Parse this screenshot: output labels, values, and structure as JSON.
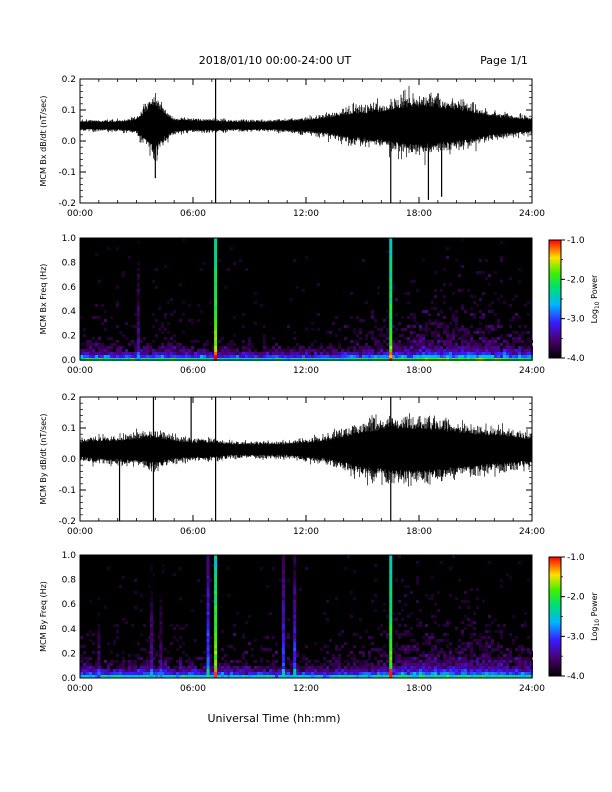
{
  "header": {
    "title": "2018/01/10  00:00-24:00 UT",
    "page": "Page 1/1"
  },
  "xlabel": "Universal Time (hh:mm)",
  "colorbar": {
    "label": "Log",
    "label_subscript": "10",
    "label_suffix": " Power",
    "range": [
      -4.0,
      -1.0
    ],
    "ticks": [
      "-1.0",
      "-2.0",
      "-3.0",
      "-4.0"
    ],
    "tick_values": [
      -1.0,
      -2.0,
      -3.0,
      -4.0
    ]
  },
  "x_ticks": [
    "00:00",
    "06:00",
    "12:00",
    "18:00",
    "24:00"
  ],
  "x_tick_values": [
    0,
    6,
    12,
    18,
    24
  ],
  "chart_data": [
    {
      "type": "line",
      "ylabel": "MCM Bx dB/dt (nT/sec)",
      "xlim": [
        0,
        24
      ],
      "ylim": [
        -0.2,
        0.2
      ],
      "y_ticks": [
        "0.2",
        "0.1",
        "0.0",
        "-0.1",
        "-0.2"
      ],
      "y_tick_values": [
        0.2,
        0.1,
        0.0,
        -0.1,
        -0.2
      ],
      "baseline": 0.05,
      "envelope_hours": [
        0,
        1,
        2,
        3,
        3.5,
        4,
        4.5,
        5,
        6,
        7,
        8,
        9,
        10,
        11,
        12,
        13,
        14,
        15,
        16,
        17,
        18,
        19,
        20,
        21,
        22,
        23,
        24
      ],
      "envelope_amplitude": [
        0.02,
        0.02,
        0.02,
        0.03,
        0.08,
        0.12,
        0.06,
        0.03,
        0.025,
        0.025,
        0.02,
        0.02,
        0.02,
        0.025,
        0.03,
        0.04,
        0.06,
        0.07,
        0.08,
        0.1,
        0.11,
        0.1,
        0.09,
        0.07,
        0.05,
        0.04,
        0.03
      ],
      "spikes": [
        {
          "t": 7.2,
          "y": 0.2
        },
        {
          "t": 7.2,
          "y": -0.2
        },
        {
          "t": 16.5,
          "y": -0.2
        },
        {
          "t": 18.5,
          "y": -0.19
        },
        {
          "t": 19.2,
          "y": -0.18
        },
        {
          "t": 4.0,
          "y": -0.12
        }
      ]
    },
    {
      "type": "heatmap",
      "ylabel": "MCM Bx Freq (Hz)",
      "xlim": [
        0,
        24
      ],
      "ylim": [
        0.0,
        1.0
      ],
      "y_ticks": [
        "1.0",
        "0.8",
        "0.6",
        "0.4",
        "0.2",
        "0.0"
      ],
      "y_tick_values": [
        1.0,
        0.8,
        0.6,
        0.4,
        0.2,
        0.0
      ],
      "vertical_stripes": [
        {
          "t": 7.2,
          "power": -1.6
        },
        {
          "t": 16.5,
          "power": -1.7
        },
        {
          "t": 3.1,
          "power": -3.3
        }
      ],
      "activity_hours": [
        0,
        2,
        4,
        6,
        8,
        10,
        12,
        14,
        16,
        18,
        20,
        22,
        24
      ],
      "activity_level": [
        0.3,
        0.25,
        0.3,
        0.25,
        0.2,
        0.2,
        0.2,
        0.25,
        0.35,
        0.45,
        0.5,
        0.45,
        0.35
      ]
    },
    {
      "type": "line",
      "ylabel": "MCM By dB/dt (nT/sec)",
      "xlim": [
        0,
        24
      ],
      "ylim": [
        -0.2,
        0.2
      ],
      "y_ticks": [
        "0.2",
        "0.1",
        "0.0",
        "-0.1",
        "-0.2"
      ],
      "y_tick_values": [
        0.2,
        0.1,
        0.0,
        -0.1,
        -0.2
      ],
      "baseline": 0.03,
      "envelope_hours": [
        0,
        1,
        2,
        3,
        4,
        5,
        6,
        7,
        8,
        9,
        10,
        11,
        12,
        13,
        14,
        15,
        16,
        17,
        18,
        19,
        20,
        21,
        22,
        23,
        24
      ],
      "envelope_amplitude": [
        0.04,
        0.05,
        0.05,
        0.06,
        0.07,
        0.05,
        0.04,
        0.04,
        0.03,
        0.03,
        0.03,
        0.03,
        0.04,
        0.05,
        0.07,
        0.1,
        0.11,
        0.12,
        0.12,
        0.11,
        0.1,
        0.09,
        0.08,
        0.07,
        0.06
      ],
      "spikes": [
        {
          "t": 7.2,
          "y": 0.2
        },
        {
          "t": 7.2,
          "y": -0.2
        },
        {
          "t": 2.1,
          "y": -0.2
        },
        {
          "t": 3.9,
          "y": -0.2
        },
        {
          "t": 3.9,
          "y": 0.2
        },
        {
          "t": 5.9,
          "y": 0.2
        },
        {
          "t": 16.5,
          "y": -0.2
        },
        {
          "t": 16.5,
          "y": 0.2
        }
      ]
    },
    {
      "type": "heatmap",
      "ylabel": "MCM By Freq (Hz)",
      "xlim": [
        0,
        24
      ],
      "ylim": [
        0.0,
        1.0
      ],
      "y_ticks": [
        "1.0",
        "0.8",
        "0.6",
        "0.4",
        "0.2",
        "0.0"
      ],
      "y_tick_values": [
        1.0,
        0.8,
        0.6,
        0.4,
        0.2,
        0.0
      ],
      "vertical_stripes": [
        {
          "t": 7.2,
          "power": -1.6
        },
        {
          "t": 6.8,
          "power": -2.8
        },
        {
          "t": 10.8,
          "power": -2.9
        },
        {
          "t": 11.4,
          "power": -3.0
        },
        {
          "t": 16.5,
          "power": -1.7
        },
        {
          "t": 3.8,
          "power": -3.3
        },
        {
          "t": 4.3,
          "power": -3.4
        },
        {
          "t": 1.0,
          "power": -3.5
        }
      ],
      "activity_hours": [
        0,
        2,
        4,
        6,
        8,
        10,
        12,
        14,
        16,
        18,
        20,
        22,
        24
      ],
      "activity_level": [
        0.3,
        0.3,
        0.35,
        0.3,
        0.3,
        0.25,
        0.25,
        0.3,
        0.4,
        0.5,
        0.5,
        0.45,
        0.35
      ]
    }
  ]
}
